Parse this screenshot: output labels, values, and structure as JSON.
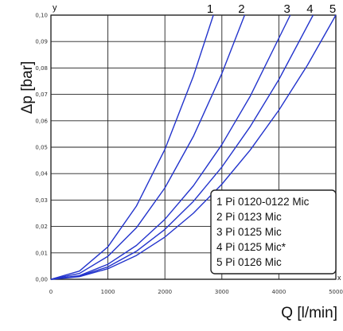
{
  "chart_data": {
    "type": "line",
    "ylabel": "Δp [bar]",
    "xlabel": "Q [l/min]",
    "y_axis_marker": "y",
    "x_axis_marker": "x",
    "xlim": [
      0,
      5000
    ],
    "ylim": [
      0,
      0.1
    ],
    "x_ticks": [
      "0",
      "1000",
      "2000",
      "3000",
      "4000",
      "5000"
    ],
    "y_ticks": [
      "0,00",
      "0,01",
      "0,02",
      "0,03",
      "0,04",
      "0,05",
      "0,06",
      "0,07",
      "0,08",
      "0,09",
      "0,10"
    ],
    "grid": true,
    "legend_position": "bottom-right",
    "line_color": "#2233cc",
    "series": [
      {
        "label": "1",
        "name": "1 Pi 0120-0122 Mic",
        "x": [
          0,
          500,
          1000,
          1500,
          2000,
          2500,
          2850
        ],
        "y": [
          0,
          0.0031,
          0.0123,
          0.0277,
          0.0492,
          0.0769,
          0.1
        ]
      },
      {
        "label": "2",
        "name": "2 Pi 0123 Mic",
        "x": [
          0,
          500,
          1000,
          1500,
          2000,
          2500,
          3000,
          3400
        ],
        "y": [
          0,
          0.0022,
          0.0087,
          0.0195,
          0.0346,
          0.0541,
          0.0779,
          0.1
        ]
      },
      {
        "label": "3",
        "name": "3 Pi 0125 Mic",
        "x": [
          0,
          500,
          1000,
          1500,
          2000,
          2500,
          3000,
          3500,
          4200
        ],
        "y": [
          0,
          0.0014,
          0.0057,
          0.0128,
          0.0227,
          0.0354,
          0.051,
          0.0694,
          0.1
        ]
      },
      {
        "label": "4",
        "name": "4 Pi 0125 Mic*",
        "x": [
          0,
          500,
          1000,
          1500,
          2000,
          2500,
          3000,
          3500,
          4000,
          4600
        ],
        "y": [
          0,
          0.0012,
          0.0047,
          0.0106,
          0.0189,
          0.0295,
          0.0425,
          0.0579,
          0.0756,
          0.1
        ]
      },
      {
        "label": "5",
        "name": "5 Pi 0126 Mic",
        "x": [
          0,
          500,
          1000,
          1500,
          2000,
          2500,
          3000,
          3500,
          4000,
          4500,
          5000
        ],
        "y": [
          0,
          0.001,
          0.004,
          0.009,
          0.016,
          0.025,
          0.036,
          0.049,
          0.064,
          0.081,
          0.1
        ]
      }
    ]
  }
}
